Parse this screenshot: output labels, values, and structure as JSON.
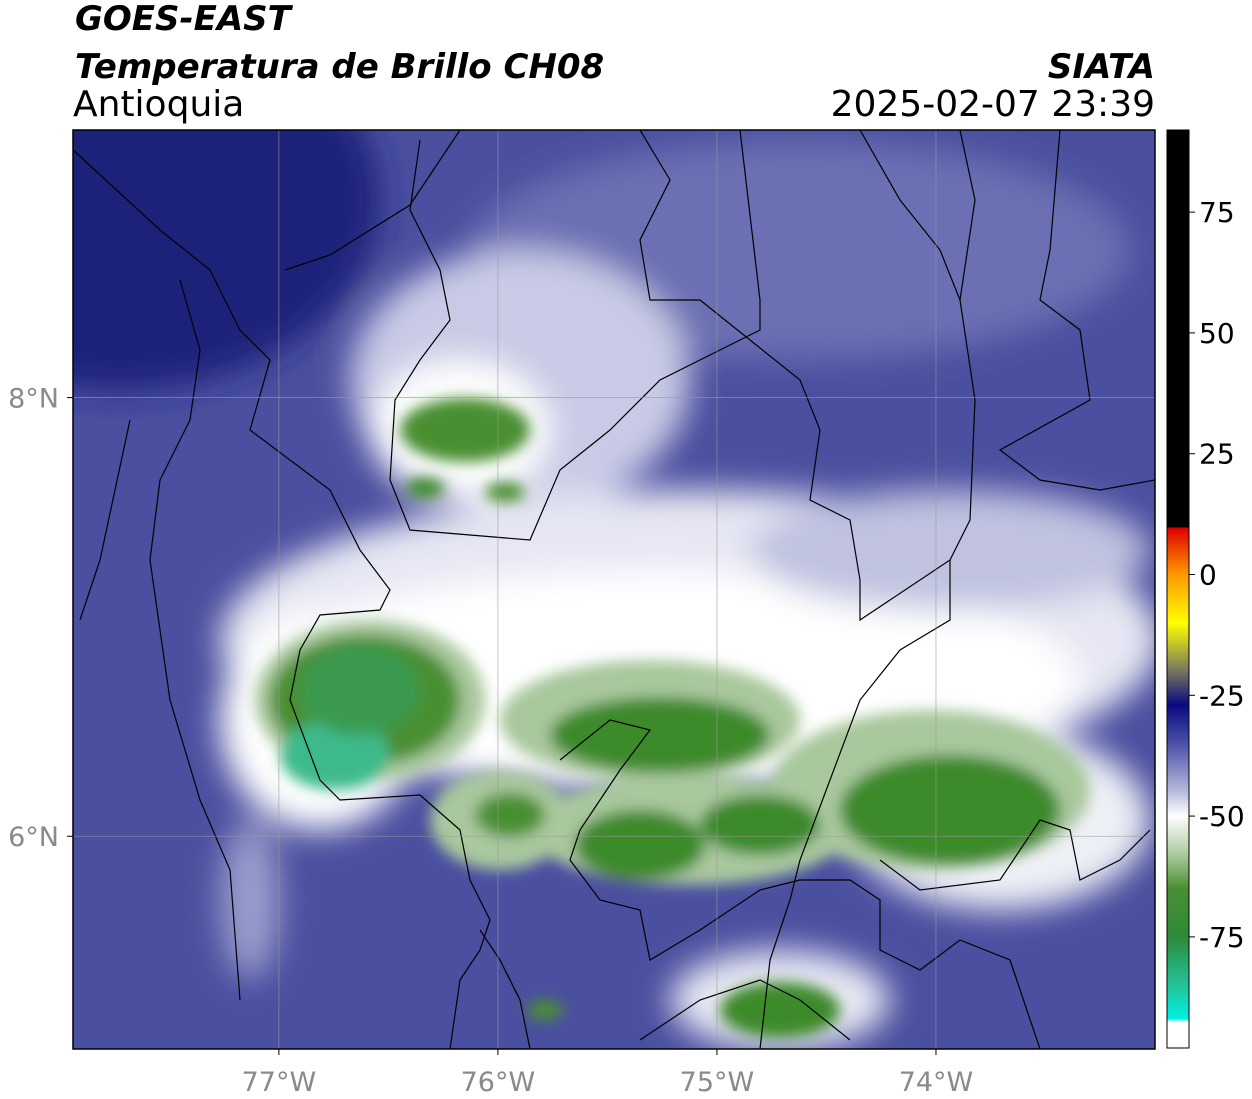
{
  "header": {
    "title": "GOES-EAST",
    "subtitle": "Temperatura de Brillo CH08",
    "region": "Antioquia",
    "source": "SIATA",
    "datetime": "2025-02-07 23:39"
  },
  "map": {
    "xlim": [
      -77.94,
      -73
    ],
    "ylim": [
      5.03,
      9.22
    ],
    "xticks": [
      {
        "value": -77,
        "label": "77°W"
      },
      {
        "value": -76,
        "label": "76°W"
      },
      {
        "value": -75,
        "label": "75°W"
      },
      {
        "value": -74,
        "label": "74°W"
      }
    ],
    "yticks": [
      {
        "value": 6,
        "label": "6°N"
      },
      {
        "value": 8,
        "label": "8°N"
      }
    ],
    "grid": true
  },
  "colorbar": {
    "lim": [
      -98,
      92
    ],
    "ticks": [
      -75,
      -50,
      -25,
      0,
      25,
      50,
      75
    ]
  }
}
